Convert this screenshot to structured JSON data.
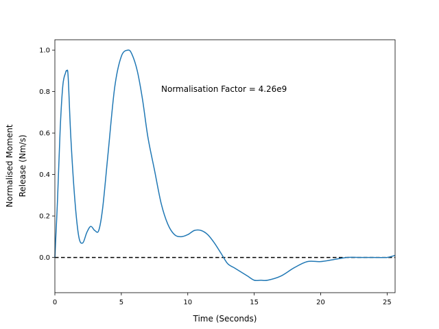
{
  "chart_data": {
    "type": "line",
    "title": "",
    "xlabel": "Time (Seconds)",
    "ylabel_lines": [
      "Normalised Moment",
      "Release (Nm/s)"
    ],
    "xlim": [
      0,
      25.6
    ],
    "ylim": [
      -0.17,
      1.05
    ],
    "x_ticks": [
      0,
      5,
      10,
      15,
      20,
      25
    ],
    "x_tick_labels": [
      "0",
      "5",
      "10",
      "15",
      "20",
      "25"
    ],
    "y_ticks": [
      0.0,
      0.2,
      0.4,
      0.6,
      0.8,
      1.0
    ],
    "y_tick_labels": [
      "0.0",
      "0.2",
      "0.4",
      "0.6",
      "0.8",
      "1.0"
    ],
    "grid": false,
    "annotation": "Normalisation Factor = 4.26e9",
    "reference_line": {
      "y": 0,
      "style": "dashed",
      "color": "#000000"
    },
    "series": [
      {
        "color": "#1f77b4",
        "x": [
          0,
          0.2,
          0.4,
          0.6,
          0.8,
          0.9,
          1.0,
          1.2,
          1.5,
          1.8,
          2.1,
          2.4,
          2.7,
          3.0,
          3.3,
          3.6,
          4.0,
          4.5,
          5.0,
          5.5,
          5.8,
          6.2,
          6.6,
          7.0,
          7.5,
          8.0,
          8.5,
          9.0,
          9.5,
          10.0,
          10.5,
          11.0,
          11.5,
          12.0,
          12.5,
          13.0,
          13.5,
          14.0,
          14.5,
          15.0,
          15.5,
          16.0,
          17.0,
          18.0,
          19.0,
          20.0,
          21.0,
          22.0,
          23.0,
          24.0,
          25.0,
          25.6
        ],
        "y": [
          0.0,
          0.28,
          0.62,
          0.83,
          0.89,
          0.9,
          0.87,
          0.58,
          0.28,
          0.1,
          0.07,
          0.12,
          0.15,
          0.13,
          0.13,
          0.24,
          0.5,
          0.82,
          0.97,
          1.0,
          0.98,
          0.9,
          0.76,
          0.58,
          0.42,
          0.26,
          0.16,
          0.11,
          0.1,
          0.11,
          0.13,
          0.13,
          0.11,
          0.07,
          0.02,
          -0.03,
          -0.05,
          -0.07,
          -0.09,
          -0.11,
          -0.11,
          -0.11,
          -0.09,
          -0.05,
          -0.02,
          -0.02,
          -0.01,
          0.0,
          0.0,
          0.0,
          0.0,
          0.01
        ]
      }
    ]
  }
}
